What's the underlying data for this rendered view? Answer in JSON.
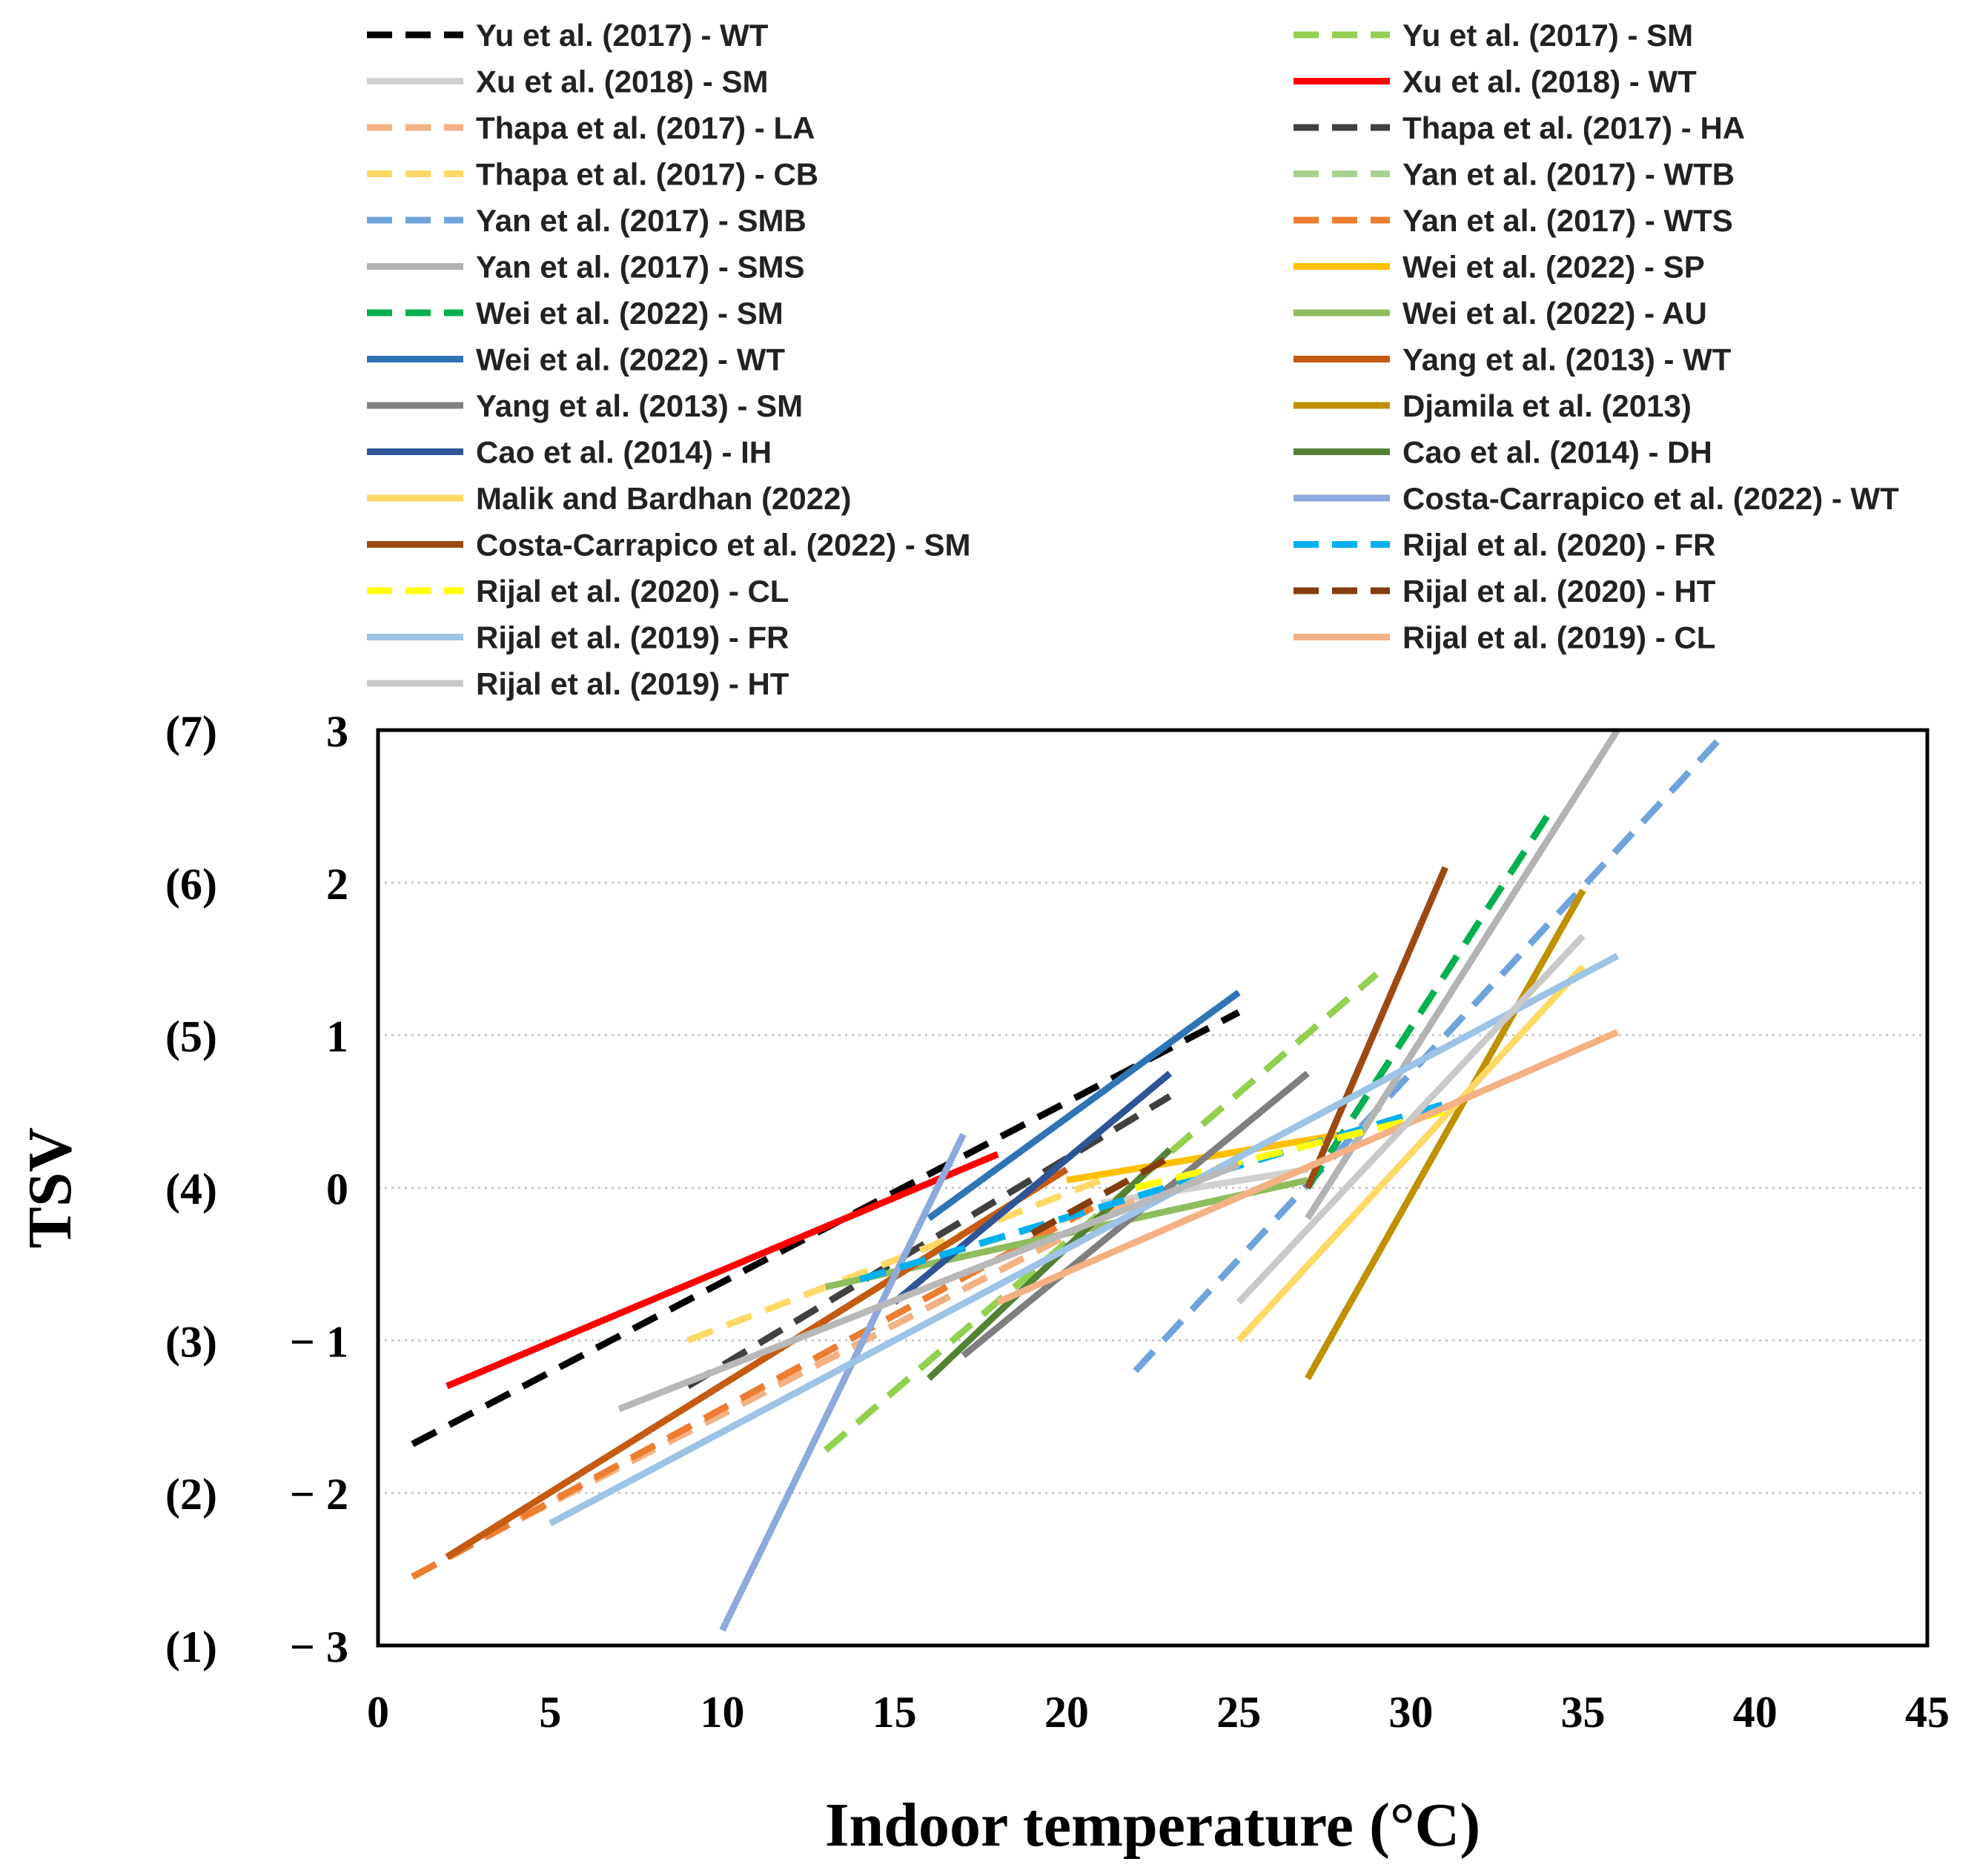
{
  "chart_data": {
    "type": "line",
    "xlabel": "Indoor temperature (°C)",
    "ylabel": "TSV",
    "xlim": [
      0,
      45
    ],
    "ylim": [
      -3,
      3
    ],
    "xticks": [
      "0",
      "5",
      "10",
      "15",
      "20",
      "25",
      "30",
      "35",
      "40",
      "45"
    ],
    "yticks": [
      "3",
      "2",
      "1",
      "0",
      "− 1",
      "− 2",
      "− 3"
    ],
    "yticks_alt": [
      "(7)",
      "(6)",
      "(5)",
      "(4)",
      "(3)",
      "(2)",
      "(1)"
    ],
    "grid": "horizontal dotted",
    "legend_position": "top, two columns",
    "series": [
      {
        "name": "Yu et al. (2017) - WT",
        "color": "#000000",
        "dashed": true,
        "x": [
          1,
          25
        ],
        "y": [
          -1.68,
          1.15
        ]
      },
      {
        "name": "Yu et al. (2017) - SM",
        "color": "#92D050",
        "dashed": true,
        "x": [
          13,
          29
        ],
        "y": [
          -1.72,
          1.4
        ]
      },
      {
        "name": "Xu et al. (2018) - SM",
        "color": "#D0D0D0",
        "dashed": false,
        "x": [
          21,
          27
        ],
        "y": [
          -0.1,
          0.12
        ]
      },
      {
        "name": "Xu et al. (2018) - WT",
        "color": "#FF0000",
        "dashed": false,
        "x": [
          2,
          18
        ],
        "y": [
          -1.3,
          0.22
        ]
      },
      {
        "name": "Thapa et al. (2017) - LA",
        "color": "#F4B183",
        "dashed": true,
        "x": [
          2,
          22
        ],
        "y": [
          -2.42,
          -0.08
        ]
      },
      {
        "name": "Thapa et al. (2017) - HA",
        "color": "#404040",
        "dashed": true,
        "x": [
          9,
          23
        ],
        "y": [
          -1.3,
          0.6
        ]
      },
      {
        "name": "Thapa et al. (2017) - CB",
        "color": "#FFD966",
        "dashed": true,
        "x": [
          9,
          21
        ],
        "y": [
          -1.0,
          0.05
        ]
      },
      {
        "name": "Yan et al. (2017) - WTB",
        "color": "#A9D18E",
        "dashed": true,
        "x": [
          14,
          20
        ],
        "y": [
          -0.6,
          -0.2
        ]
      },
      {
        "name": "Yan et al.  (2017) - SMB",
        "color": "#6FA3DC",
        "dashed": true,
        "x": [
          22,
          39
        ],
        "y": [
          -1.2,
          2.95
        ]
      },
      {
        "name": "Yan et al. (2017) - WTS",
        "color": "#ED7D31",
        "dashed": true,
        "x": [
          1,
          21
        ],
        "y": [
          -2.55,
          -0.1
        ]
      },
      {
        "name": "Yan et al. (2017) - SMS",
        "color": "#B3B3B3",
        "dashed": false,
        "x": [
          27,
          36
        ],
        "y": [
          -0.2,
          3.0
        ]
      },
      {
        "name": "Wei et al. (2022) - SP",
        "color": "#FFC000",
        "dashed": false,
        "x": [
          20,
          28
        ],
        "y": [
          0.05,
          0.35
        ]
      },
      {
        "name": "Wei et al. (2022) - SM",
        "color": "#00B050",
        "dashed": true,
        "x": [
          27,
          34
        ],
        "y": [
          0.0,
          2.45
        ]
      },
      {
        "name": "Wei et al. (2022) - AU",
        "color": "#8FBC5C",
        "dashed": false,
        "x": [
          13,
          27
        ],
        "y": [
          -0.65,
          0.05
        ]
      },
      {
        "name": "Wei et al. (2022) - WT",
        "color": "#2E75B6",
        "dashed": false,
        "x": [
          16,
          25
        ],
        "y": [
          -0.2,
          1.28
        ]
      },
      {
        "name": "Yang et al. (2013) - WT",
        "color": "#C55A11",
        "dashed": false,
        "x": [
          2,
          20
        ],
        "y": [
          -2.42,
          0.12
        ]
      },
      {
        "name": "Yang et al. (2013) - SM",
        "color": "#7F7F7F",
        "dashed": false,
        "x": [
          17,
          27
        ],
        "y": [
          -1.1,
          0.75
        ]
      },
      {
        "name": "Djamila et al. (2013)",
        "color": "#BF9000",
        "dashed": false,
        "x": [
          27,
          35
        ],
        "y": [
          -1.25,
          1.95
        ]
      },
      {
        "name": "Cao et al. (2014) - IH",
        "color": "#2F5597",
        "dashed": false,
        "x": [
          15,
          23
        ],
        "y": [
          -0.75,
          0.75
        ]
      },
      {
        "name": "Cao et al. (2014) - DH",
        "color": "#548235",
        "dashed": false,
        "x": [
          16,
          23
        ],
        "y": [
          -1.25,
          0.25
        ]
      },
      {
        "name": "Malik and Bardhan (2022)",
        "color": "#FFD966",
        "dashed": false,
        "x": [
          25,
          35
        ],
        "y": [
          -1.0,
          1.45
        ]
      },
      {
        "name": "Costa-Carrapico et al. (2022) - WT",
        "color": "#8EA9DB",
        "dashed": false,
        "x": [
          10,
          17
        ],
        "y": [
          -2.9,
          0.35
        ]
      },
      {
        "name": "Costa-Carrapico et al. (2022) - SM",
        "color": "#9C4A12",
        "dashed": false,
        "x": [
          27,
          31
        ],
        "y": [
          0.0,
          2.1
        ]
      },
      {
        "name": "Rijal et al. (2020) - FR",
        "color": "#00B0F0",
        "dashed": true,
        "x": [
          14,
          31
        ],
        "y": [
          -0.6,
          0.55
        ]
      },
      {
        "name": "Rijal et al. (2020) - CL",
        "color": "#FFFF00",
        "dashed": true,
        "x": [
          22,
          31
        ],
        "y": [
          0.0,
          0.5
        ]
      },
      {
        "name": "Rijal et al. (2020) - HT",
        "color": "#843C0C",
        "dashed": true,
        "x": [
          19,
          23
        ],
        "y": [
          -0.3,
          0.2
        ]
      },
      {
        "name": "Rijal et al. (2019) - FR",
        "color": "#9DC3E6",
        "dashed": false,
        "x": [
          5,
          36
        ],
        "y": [
          -2.2,
          1.52
        ]
      },
      {
        "name": "Rijal et al. (2019) - CL",
        "color": "#F4B183",
        "dashed": false,
        "x": [
          18,
          36
        ],
        "y": [
          -0.75,
          1.02
        ]
      },
      {
        "name": "Rijal et al. (2019) - HT",
        "color": "#C9C9C9",
        "dashed": false,
        "x": [
          25,
          35
        ],
        "y": [
          -0.75,
          1.65
        ]
      },
      {
        "name": "",
        "color": "#B8B8B8",
        "dashed": false,
        "x": [
          7,
          25
        ],
        "y": [
          -1.45,
          0.15
        ]
      }
    ]
  }
}
